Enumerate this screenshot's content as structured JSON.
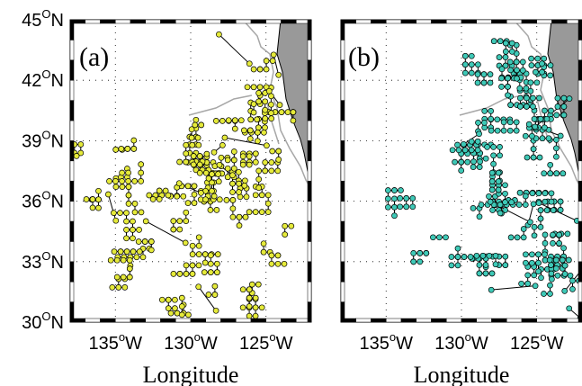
{
  "colors": {
    "land": "#999999",
    "coast_line": "#a7a7a7",
    "track": "#000000",
    "grid": "#000000",
    "panel_a_marker": "#e5ea3a",
    "panel_b_marker": "#3ec9b7"
  },
  "latitude_ticks": [
    {
      "value": 45,
      "deg": "45",
      "hemi": "N"
    },
    {
      "value": 42,
      "deg": "42",
      "hemi": "N"
    },
    {
      "value": 39,
      "deg": "39",
      "hemi": "N"
    },
    {
      "value": 36,
      "deg": "36",
      "hemi": "N"
    },
    {
      "value": 33,
      "deg": "33",
      "hemi": "N"
    },
    {
      "value": 30,
      "deg": "30",
      "hemi": "N"
    }
  ],
  "longitude_ticks": [
    {
      "value": -135,
      "deg": "135",
      "hemi": "W"
    },
    {
      "value": -130,
      "deg": "130",
      "hemi": "W"
    },
    {
      "value": -125,
      "deg": "125",
      "hemi": "W"
    }
  ],
  "x_axis_title": "Longitude",
  "map_extent": {
    "lon": [
      -138,
      -122
    ],
    "lat": [
      30,
      45
    ]
  },
  "panels": [
    {
      "label": "(a)",
      "marker_color_key": "panel_a_marker",
      "seed": 7,
      "cluster_count": 70,
      "clusters": [
        {
          "lon": [
            -137.8,
            -134.0
          ],
          "lat": [
            36.0,
            38.6
          ],
          "weight": 2
        },
        {
          "lon": [
            -133.0,
            -125.0
          ],
          "lat": [
            35.5,
            37.5
          ],
          "weight": 3
        },
        {
          "lon": [
            -130.0,
            -124.0
          ],
          "lat": [
            37.5,
            40.0
          ],
          "weight": 3
        },
        {
          "lon": [
            -126.5,
            -124.0
          ],
          "lat": [
            40.0,
            43.8
          ],
          "weight": 2
        },
        {
          "lon": [
            -136.0,
            -123.0
          ],
          "lat": [
            33.0,
            35.5
          ],
          "weight": 2
        },
        {
          "lon": [
            -137.5,
            -123.0
          ],
          "lat": [
            30.4,
            33.0
          ],
          "weight": 2
        }
      ]
    },
    {
      "label": "(b)",
      "marker_color_key": "panel_b_marker",
      "seed": 19,
      "cluster_count": 70,
      "clusters": [
        {
          "lon": [
            -130.0,
            -126.0
          ],
          "lat": [
            38.0,
            43.5
          ],
          "weight": 2
        },
        {
          "lon": [
            -127.5,
            -124.0
          ],
          "lat": [
            39.0,
            44.0
          ],
          "weight": 3
        },
        {
          "lon": [
            -131.0,
            -123.5
          ],
          "lat": [
            35.0,
            39.0
          ],
          "weight": 3
        },
        {
          "lon": [
            -128.5,
            -122.2
          ],
          "lat": [
            32.0,
            35.5
          ],
          "weight": 3
        },
        {
          "lon": [
            -127.0,
            -122.2
          ],
          "lat": [
            30.5,
            32.5
          ],
          "weight": 2
        },
        {
          "lon": [
            -134.5,
            -130.0
          ],
          "lat": [
            32.8,
            36.3
          ],
          "weight": 1
        }
      ]
    }
  ]
}
